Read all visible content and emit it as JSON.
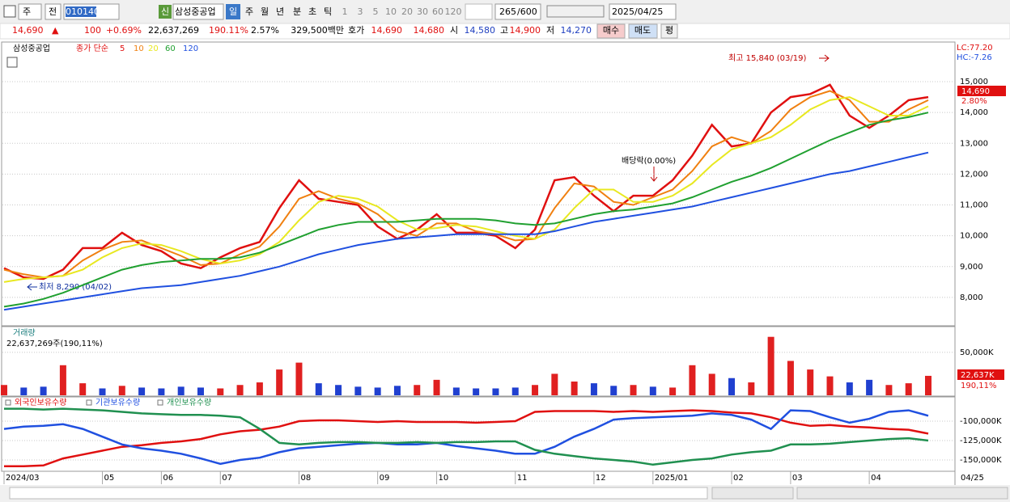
{
  "toolbar": {
    "market": "주",
    "prev": "전",
    "code": "010140",
    "credit": "신",
    "name": "삼성중공업",
    "periods": [
      "일",
      "주",
      "월",
      "년",
      "분",
      "초",
      "틱"
    ],
    "intervals": [
      "1",
      "3",
      "5",
      "10",
      "20",
      "30",
      "60",
      "120"
    ],
    "count": "265",
    "count_max": "/600",
    "date": "2025/04/25"
  },
  "quote_bar": {
    "price": "14,690",
    "arrow": "▲",
    "change": "100",
    "change_pct": "+0.69%",
    "volume": "22,637,269",
    "volume_pct": "190.11%",
    "turnover": "2.57%",
    "amount": "329,500백만",
    "bid_label": "호가",
    "ask": "14,690",
    "bid": "14,680",
    "open_label": "시",
    "open": "14,580",
    "high_label": "고",
    "high": "14,900",
    "low_label": "저",
    "low": "14,270",
    "buy": "매수",
    "sell": "매도",
    "avg": "평"
  },
  "chart_data": [
    {
      "type": "line",
      "title": "삼성중공업",
      "subtitle": "종가 단순",
      "series": [
        {
          "name": "5",
          "color": "#e01010",
          "values": [
            8950,
            8650,
            8600,
            8900,
            9600,
            9600,
            10100,
            9700,
            9500,
            9100,
            8950,
            9300,
            9600,
            9800,
            10900,
            11800,
            11200,
            11100,
            11000,
            10300,
            9900,
            10200,
            10700,
            10100,
            10100,
            10000,
            9600,
            10200,
            11800,
            11900,
            11300,
            10800,
            11300,
            11300,
            11800,
            12600,
            13600,
            12900,
            13000,
            14000,
            14500,
            14600,
            14900,
            13900,
            13500,
            13900,
            14400,
            14500
          ]
        },
        {
          "name": "10",
          "color": "#f08010",
          "values": [
            8900,
            8750,
            8650,
            8700,
            9200,
            9550,
            9800,
            9850,
            9600,
            9350,
            9050,
            9100,
            9400,
            9650,
            10300,
            11200,
            11450,
            11200,
            11050,
            10700,
            10150,
            10000,
            10400,
            10400,
            10150,
            10050,
            9850,
            9900,
            10900,
            11700,
            11600,
            11100,
            11000,
            11250,
            11500,
            12100,
            12900,
            13200,
            13000,
            13400,
            14100,
            14500,
            14700,
            14400,
            13700,
            13700,
            14100,
            14400
          ]
        },
        {
          "name": "20",
          "color": "#e8e820",
          "values": [
            8500,
            8600,
            8650,
            8700,
            8900,
            9300,
            9600,
            9750,
            9700,
            9500,
            9250,
            9100,
            9200,
            9400,
            9800,
            10500,
            11100,
            11300,
            11200,
            10950,
            10500,
            10200,
            10250,
            10350,
            10300,
            10150,
            10000,
            9900,
            10200,
            10900,
            11500,
            11500,
            11100,
            11100,
            11300,
            11700,
            12300,
            12800,
            13000,
            13200,
            13600,
            14100,
            14400,
            14500,
            14200,
            13900,
            13900,
            14200
          ]
        },
        {
          "name": "60",
          "color": "#20a030",
          "values": [
            7700,
            7800,
            7950,
            8150,
            8400,
            8650,
            8900,
            9050,
            9150,
            9200,
            9250,
            9250,
            9300,
            9450,
            9700,
            9950,
            10200,
            10350,
            10450,
            10450,
            10450,
            10500,
            10550,
            10550,
            10550,
            10500,
            10400,
            10350,
            10400,
            10550,
            10700,
            10800,
            10850,
            10950,
            11050,
            11250,
            11500,
            11750,
            11950,
            12200,
            12500,
            12800,
            13100,
            13350,
            13600,
            13750,
            13850,
            14000
          ]
        },
        {
          "name": "120",
          "color": "#2050e0",
          "values": [
            7600,
            7700,
            7800,
            7900,
            8000,
            8100,
            8200,
            8300,
            8350,
            8400,
            8500,
            8600,
            8700,
            8850,
            9000,
            9200,
            9400,
            9550,
            9700,
            9800,
            9900,
            9950,
            10000,
            10050,
            10050,
            10050,
            10050,
            10050,
            10150,
            10300,
            10450,
            10550,
            10650,
            10750,
            10850,
            10950,
            11100,
            11250,
            11400,
            11550,
            11700,
            11850,
            12000,
            12100,
            12250,
            12400,
            12550,
            12700
          ]
        }
      ],
      "ylim": [
        7080,
        16260
      ],
      "yticks": [
        {
          "value": 8000,
          "label": "8,000"
        },
        {
          "value": 9000,
          "label": "9,000"
        },
        {
          "value": 10000,
          "label": "10,000"
        },
        {
          "value": 11000,
          "label": "11,000"
        },
        {
          "value": 12000,
          "label": "12,000"
        },
        {
          "value": 13000,
          "label": "13,000"
        },
        {
          "value": 14000,
          "label": "14,000"
        },
        {
          "value": 15000,
          "label": "15,000"
        }
      ],
      "grid": true,
      "annotations": {
        "high": "최고 15,840 (03/19)",
        "low": "최저 8,290 (04/02)",
        "dividend": "배당락(0.00%)",
        "lc": "LC:77.20",
        "hc": "HC:-7.26",
        "last": "14,690",
        "last_pct": "2.80%"
      }
    },
    {
      "type": "bar",
      "title": "거래량",
      "subtitle": "22,637,269주(190,11%)",
      "values": [
        12000,
        9000,
        10000,
        35000,
        14000,
        8000,
        11000,
        9000,
        8000,
        10000,
        9000,
        8000,
        12000,
        15000,
        30000,
        38000,
        14000,
        12000,
        10000,
        9000,
        11000,
        12000,
        18000,
        9000,
        8000,
        8000,
        9000,
        12000,
        25000,
        16000,
        14000,
        11000,
        12000,
        10000,
        9000,
        35000,
        25000,
        20000,
        15000,
        68000,
        40000,
        30000,
        22000,
        15000,
        18000,
        12000,
        14000,
        22637
      ],
      "colors": [
        "#e02020",
        "#2040d0",
        "#2040d0",
        "#e02020",
        "#e02020",
        "#2040d0",
        "#e02020",
        "#2040d0",
        "#2040d0",
        "#2040d0",
        "#2040d0",
        "#e02020",
        "#e02020",
        "#e02020",
        "#e02020",
        "#e02020",
        "#2040d0",
        "#2040d0",
        "#2040d0",
        "#2040d0",
        "#2040d0",
        "#e02020",
        "#e02020",
        "#2040d0",
        "#2040d0",
        "#2040d0",
        "#2040d0",
        "#e02020",
        "#e02020",
        "#e02020",
        "#2040d0",
        "#2040d0",
        "#e02020",
        "#2040d0",
        "#e02020",
        "#e02020",
        "#e02020",
        "#2040d0",
        "#e02020",
        "#e02020",
        "#e02020",
        "#e02020",
        "#e02020",
        "#2040d0",
        "#2040d0",
        "#e02020",
        "#e02020",
        "#e02020"
      ],
      "ylim": [
        0,
        79000
      ],
      "yticks": [
        {
          "value": 50000,
          "label": "50,000K"
        }
      ],
      "last": "22,637K",
      "last_pct": "190,11%"
    },
    {
      "type": "line",
      "series": [
        {
          "name": "외국인보유수량",
          "color": "#e01010",
          "values": [
            -158000,
            -158000,
            -157000,
            -148000,
            -143000,
            -138000,
            -133000,
            -131000,
            -128000,
            -126000,
            -123000,
            -117000,
            -113000,
            -111000,
            -107000,
            -100000,
            -99000,
            -99000,
            -100000,
            -101000,
            -100000,
            -101000,
            -101000,
            -101000,
            -102000,
            -101000,
            -100000,
            -88000,
            -87000,
            -87000,
            -87000,
            -88000,
            -87000,
            -88000,
            -87000,
            -86000,
            -87000,
            -89000,
            -90000,
            -95000,
            -102000,
            -106000,
            -105000,
            -107000,
            -108000,
            -110000,
            -111000,
            -116000
          ]
        },
        {
          "name": "기관보유수량",
          "color": "#2050e0",
          "values": [
            -110000,
            -107000,
            -106000,
            -104000,
            -110000,
            -120000,
            -130000,
            -135000,
            -138000,
            -142000,
            -148000,
            -155000,
            -150000,
            -147000,
            -140000,
            -135000,
            -133000,
            -131000,
            -129000,
            -128000,
            -130000,
            -130000,
            -128000,
            -132000,
            -135000,
            -138000,
            -142000,
            -142000,
            -133000,
            -120000,
            -110000,
            -98000,
            -96000,
            -95000,
            -94000,
            -93000,
            -90000,
            -92000,
            -98000,
            -110000,
            -86000,
            -87000,
            -95000,
            -102000,
            -97000,
            -88000,
            -86000,
            -93000
          ]
        },
        {
          "name": "개인보유수량",
          "color": "#209050",
          "values": [
            -84000,
            -84000,
            -85000,
            -84000,
            -85000,
            -86000,
            -88000,
            -90000,
            -91000,
            -92000,
            -92000,
            -93000,
            -95000,
            -110000,
            -128000,
            -130000,
            -128000,
            -127000,
            -127000,
            -128000,
            -128000,
            -127000,
            -128000,
            -127000,
            -127000,
            -126000,
            -126000,
            -137000,
            -142000,
            -145000,
            -148000,
            -150000,
            -152000,
            -156000,
            -153000,
            -150000,
            -148000,
            -143000,
            -140000,
            -138000,
            -130000,
            -130000,
            -129000,
            -127000,
            -125000,
            -123000,
            -122000,
            -125000
          ]
        }
      ],
      "ylim": [
        -163500,
        -69800
      ],
      "yticks": [
        {
          "value": -100000,
          "label": "-100,000K"
        },
        {
          "value": -125000,
          "label": "-125,000K"
        },
        {
          "value": -150000,
          "label": "-150,000K"
        }
      ],
      "grid": true,
      "categories": [
        "2024/03",
        null,
        null,
        null,
        null,
        "05",
        null,
        null,
        "06",
        null,
        null,
        "07",
        null,
        null,
        null,
        "08",
        null,
        null,
        null,
        "09",
        null,
        null,
        "10",
        null,
        null,
        null,
        "11",
        null,
        null,
        null,
        "12",
        null,
        null,
        "2025/01",
        null,
        null,
        null,
        "02",
        null,
        null,
        "03",
        null,
        null,
        null,
        "04",
        null,
        null,
        null
      ],
      "x_end_label": "04/25"
    }
  ]
}
